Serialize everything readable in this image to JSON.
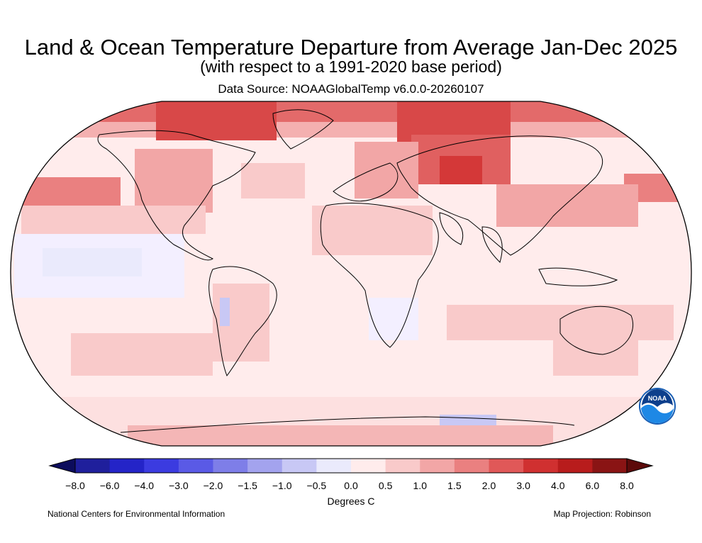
{
  "header": {
    "title": "Land & Ocean Temperature Departure from Average Jan-Dec 2025",
    "subtitle": "(with respect to a 1991-2020 base period)",
    "source": "Data Source: NOAAGlobalTemp v6.0.0-20260107"
  },
  "legend": {
    "tick_labels": [
      "−8.0",
      "−6.0",
      "−4.0",
      "−3.0",
      "−2.0",
      "−1.5",
      "−1.0",
      "−0.5",
      "0.0",
      "0.5",
      "1.0",
      "1.5",
      "2.0",
      "3.0",
      "4.0",
      "6.0",
      "8.0"
    ],
    "colors": [
      "#1f1f9c",
      "#2424c8",
      "#3b3be0",
      "#5a5ae6",
      "#7e7ee8",
      "#a3a3ee",
      "#c8c8f5",
      "#eaeafc",
      "#ffecec",
      "#f9caca",
      "#f2a6a6",
      "#ea8080",
      "#e05858",
      "#d03030",
      "#b81c1c",
      "#8a1414"
    ],
    "under_color": "#0c0c5c",
    "over_color": "#5c0a0a",
    "units": "Degrees C"
  },
  "footer": {
    "left": "National Centers for Environmental Information",
    "right": "Map Projection: Robinson"
  },
  "logo": {
    "text": "NOAA",
    "icon": "noaa-logo-icon"
  }
}
